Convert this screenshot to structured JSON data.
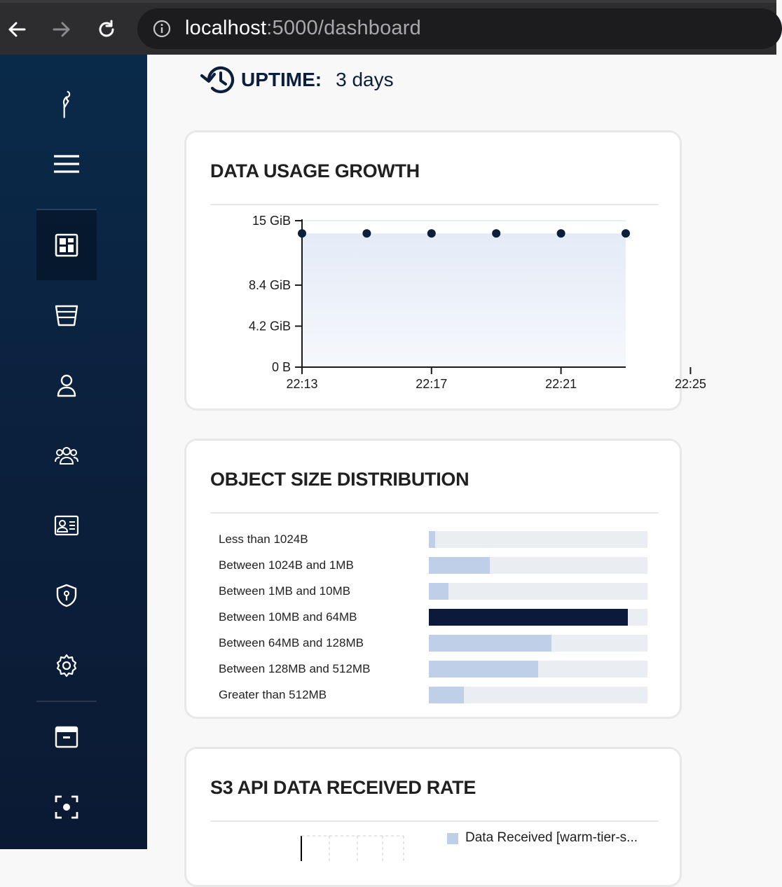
{
  "browser": {
    "url_host": "localhost",
    "url_rest": ":5000/dashboard",
    "icons": [
      "back-arrow-icon",
      "forward-arrow-icon",
      "reload-icon",
      "info-icon"
    ]
  },
  "sidebar": {
    "items": [
      {
        "name": "logo",
        "icon": "minio-bird-icon"
      },
      {
        "name": "menu",
        "icon": "hamburger-icon"
      },
      {
        "name": "dashboard",
        "icon": "dashboard-icon",
        "active": true
      },
      {
        "name": "buckets",
        "icon": "bucket-icon"
      },
      {
        "name": "users",
        "icon": "user-icon"
      },
      {
        "name": "groups",
        "icon": "group-icon"
      },
      {
        "name": "service-accounts",
        "icon": "id-card-icon"
      },
      {
        "name": "policies",
        "icon": "shield-icon"
      },
      {
        "name": "settings",
        "icon": "gear-icon"
      },
      {
        "name": "tiers",
        "icon": "archive-icon"
      },
      {
        "name": "monitoring",
        "icon": "focus-icon"
      }
    ]
  },
  "uptime": {
    "label": "UPTIME:",
    "value": "3 days"
  },
  "usage_card": {
    "title": "DATA USAGE GROWTH"
  },
  "distribution_card": {
    "title": "OBJECT SIZE DISTRIBUTION"
  },
  "s3_card": {
    "title": "S3 API DATA RECEIVED RATE",
    "legend": "Data Received [warm-tier-s..."
  },
  "colors": {
    "sidebar_top": "#0a2a4a",
    "sidebar_bottom": "#0b1a33",
    "bar_light": "#bfcfe7",
    "bar_dark": "#0b1a3a",
    "track": "#eaedf1",
    "area_fill": "#e6edf8"
  },
  "chart_data": [
    {
      "type": "area",
      "title": "DATA USAGE GROWTH",
      "x": [
        "22:13",
        "22:15",
        "22:17",
        "22:19",
        "22:21",
        "22:23"
      ],
      "x_tick_labels": [
        "22:13",
        "22:17",
        "22:21",
        "22:25"
      ],
      "y_tick_labels": [
        "0 B",
        "4.2 GiB",
        "8.4 GiB",
        "15 GiB"
      ],
      "y_tick_values": [
        0,
        4.2,
        8.4,
        15
      ],
      "values": [
        13.7,
        13.7,
        13.7,
        13.7,
        13.7,
        13.7
      ],
      "ylim": [
        0,
        15
      ],
      "grid": true
    },
    {
      "type": "bar",
      "orientation": "horizontal",
      "title": "OBJECT SIZE DISTRIBUTION",
      "categories": [
        "Less than 1024B",
        "Between 1024B and 1MB",
        "Between 1MB and 10MB",
        "Between 10MB and 64MB",
        "Between 64MB and 128MB",
        "Between 128MB and 512MB",
        "Greater than 512MB"
      ],
      "values": [
        3,
        28,
        9,
        91,
        56,
        50,
        16
      ],
      "xlim": [
        0,
        100
      ],
      "highlight_index": 3
    }
  ]
}
